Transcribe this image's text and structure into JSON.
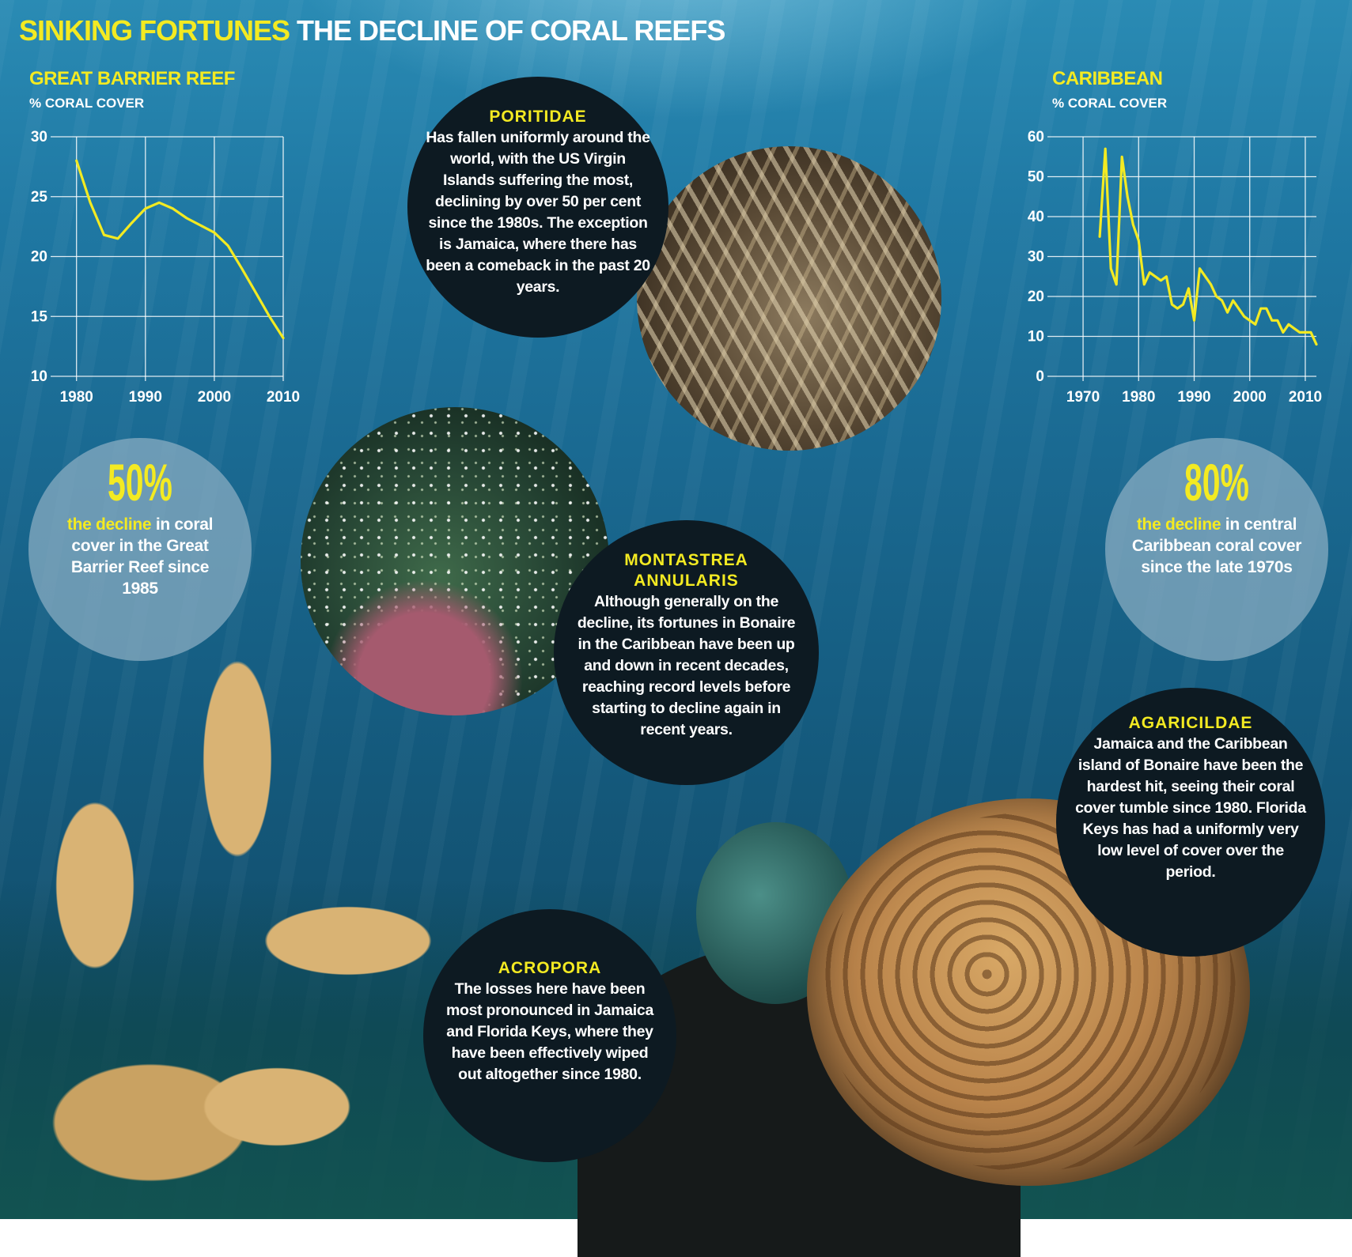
{
  "title": {
    "part1": "SINKING FORTUNES",
    "part2": "THE DECLINE OF CORAL REEFS"
  },
  "colors": {
    "accent_yellow": "#f3ea22",
    "line_yellow": "#f3ea22",
    "dark_circle": "#0d1a22",
    "stat_circle": "#8cafc3",
    "water": "#1a6991"
  },
  "charts": {
    "gbr": {
      "title": "GREAT BARRIER REEF",
      "unit": "% CORAL COVER"
    },
    "caribbean": {
      "title": "CARIBBEAN",
      "unit": "% CORAL COVER"
    }
  },
  "chart_data": [
    {
      "type": "line",
      "title": "GREAT BARRIER REEF",
      "ylabel": "% CORAL COVER",
      "xlim": [
        1979,
        2010
      ],
      "ylim": [
        10,
        30
      ],
      "x_ticks": [
        1980,
        1990,
        2000,
        2010
      ],
      "y_ticks": [
        10,
        15,
        20,
        25,
        30
      ],
      "grid": true,
      "x": [
        1980,
        1982,
        1984,
        1986,
        1988,
        1990,
        1992,
        1994,
        1996,
        1998,
        2000,
        2002,
        2004,
        2006,
        2008,
        2010
      ],
      "series": [
        {
          "values": [
            28.0,
            24.5,
            21.8,
            21.5,
            22.8,
            24.0,
            24.5,
            24.0,
            23.2,
            22.6,
            22.0,
            20.9,
            19.0,
            17.0,
            15.0,
            13.2
          ]
        }
      ]
    },
    {
      "type": "line",
      "title": "CARIBBEAN",
      "ylabel": "% CORAL COVER",
      "xlim": [
        1967,
        2012
      ],
      "ylim": [
        0,
        60
      ],
      "x_ticks": [
        1970,
        1980,
        1990,
        2000,
        2010
      ],
      "y_ticks": [
        0,
        10,
        20,
        30,
        40,
        50,
        60
      ],
      "grid": true,
      "x": [
        1973,
        1974,
        1975,
        1976,
        1977,
        1978,
        1979,
        1980,
        1981,
        1982,
        1983,
        1984,
        1985,
        1986,
        1987,
        1988,
        1989,
        1990,
        1991,
        1992,
        1993,
        1994,
        1995,
        1996,
        1997,
        1998,
        1999,
        2000,
        2001,
        2002,
        2003,
        2004,
        2005,
        2006,
        2007,
        2008,
        2009,
        2010,
        2011,
        2012
      ],
      "series": [
        {
          "values": [
            35,
            57,
            27,
            23,
            55,
            45,
            38,
            34,
            23,
            26,
            25,
            24,
            25,
            18,
            17,
            18,
            22,
            14,
            27,
            25,
            23,
            20,
            19,
            16,
            19,
            17,
            15,
            14,
            13,
            17,
            17,
            14,
            14,
            11,
            13,
            12,
            11,
            11,
            11,
            8
          ]
        }
      ]
    }
  ],
  "stats": {
    "left": {
      "value": "50%",
      "highlight": "the decline",
      "text": " in coral cover in the Great Barrier Reef since 1985"
    },
    "right": {
      "value": "80%",
      "highlight": "the decline",
      "text": " in central Caribbean coral cover since the late 1970s"
    }
  },
  "corals": {
    "poritidae": {
      "title": "PORITIDAE",
      "body": "Has fallen uniformly around the world, with the US Virgin Islands suffering the most, declining by over 50 per cent since the 1980s. The exception is Jamaica, where there has been a comeback in the past 20 years."
    },
    "montastrea": {
      "title": "MONTASTREA ANNULARIS",
      "body": "Although generally on the decline, its fortunes in Bonaire in the Caribbean have been up and down in recent decades, reaching record levels before starting to decline again in recent years."
    },
    "agaricildae": {
      "title": "AGARICILDAE",
      "body": "Jamaica and the Caribbean island of Bonaire have been the hardest hit, seeing their coral cover tumble since 1980. Florida Keys has had a uniformly very low level of cover over the period."
    },
    "acropora": {
      "title": "ACROPORA",
      "body": "The losses here have been most pronounced in Jamaica and Florida Keys, where they have been effectively wiped out altogether since 1980."
    }
  }
}
